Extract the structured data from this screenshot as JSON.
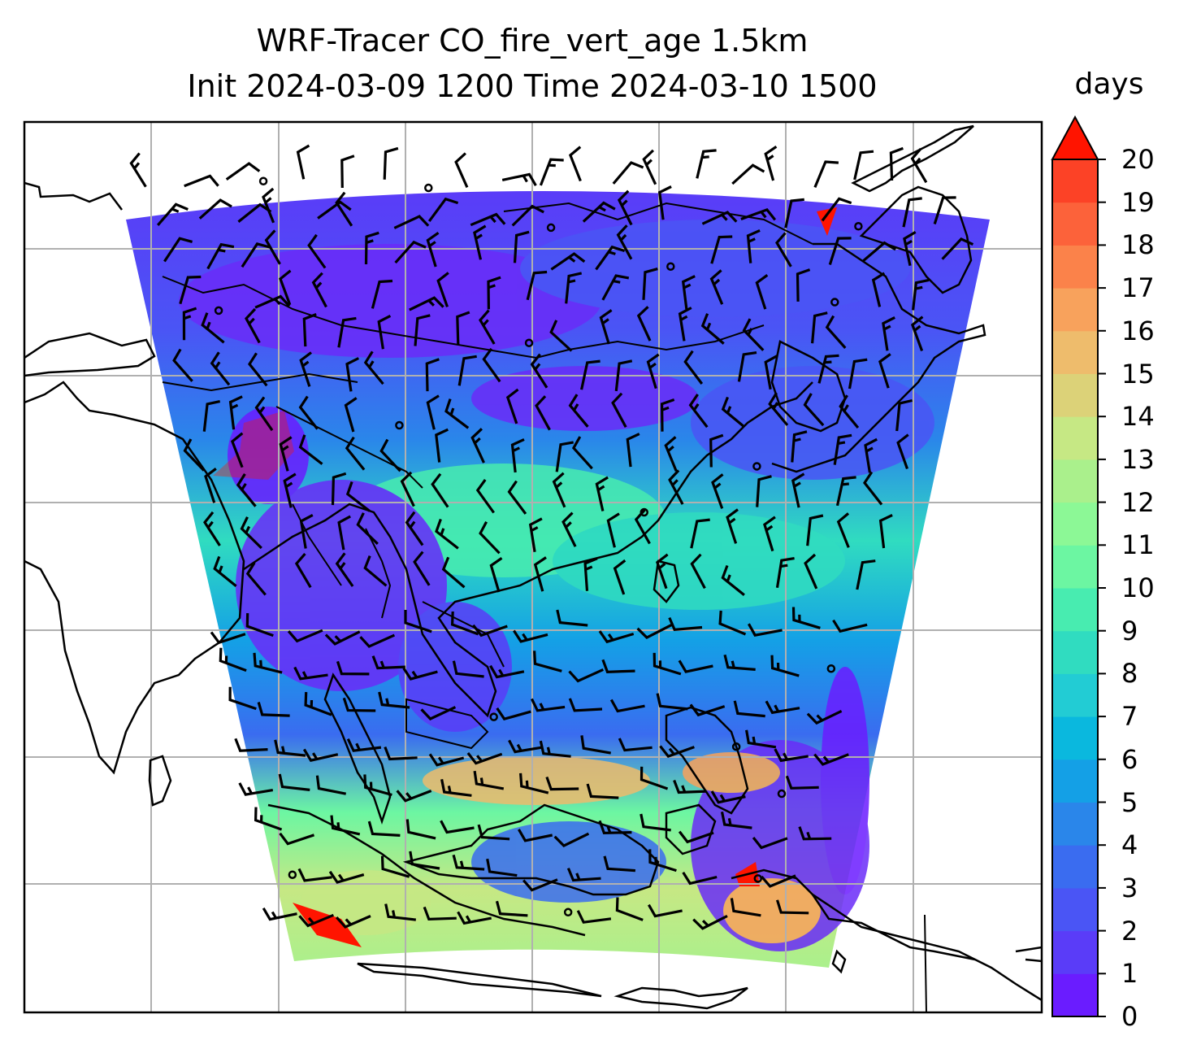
{
  "title": {
    "line1": "WRF-Tracer CO_fire_vert_age 1.5km",
    "line2": "Init 2024-03-09 1200 Time 2024-03-10 1500"
  },
  "map": {
    "variable": "CO_fire_vert_age",
    "level": "1.5km",
    "init": "2024-03-09 1200",
    "valid": "2024-03-10 1500",
    "overlay": "wind barbs",
    "features": [
      "coastlines",
      "country borders",
      "graticule"
    ],
    "background_color": "#ffffff",
    "domain_low_color": "#6a2cf8"
  },
  "colorbar": {
    "units": "days",
    "min": 0,
    "max": 20,
    "extend": "max",
    "tick_labels": [
      "0",
      "1",
      "2",
      "3",
      "4",
      "5",
      "6",
      "7",
      "8",
      "9",
      "10",
      "11",
      "12",
      "13",
      "14",
      "15",
      "16",
      "17",
      "18",
      "19",
      "20"
    ],
    "colors": [
      "#6a1cff",
      "#5a3cf8",
      "#4a55f5",
      "#3a6cf0",
      "#2a86ea",
      "#14a0e6",
      "#0ab8de",
      "#22ccd4",
      "#30dcc0",
      "#48ecb0",
      "#6cf6a2",
      "#8cf896",
      "#aaf08c",
      "#c6e884",
      "#dcd278",
      "#eebc6c",
      "#f8a25c",
      "#fb824a",
      "#fc623a",
      "#fc4226"
    ],
    "extend_color": "#ff1400"
  }
}
